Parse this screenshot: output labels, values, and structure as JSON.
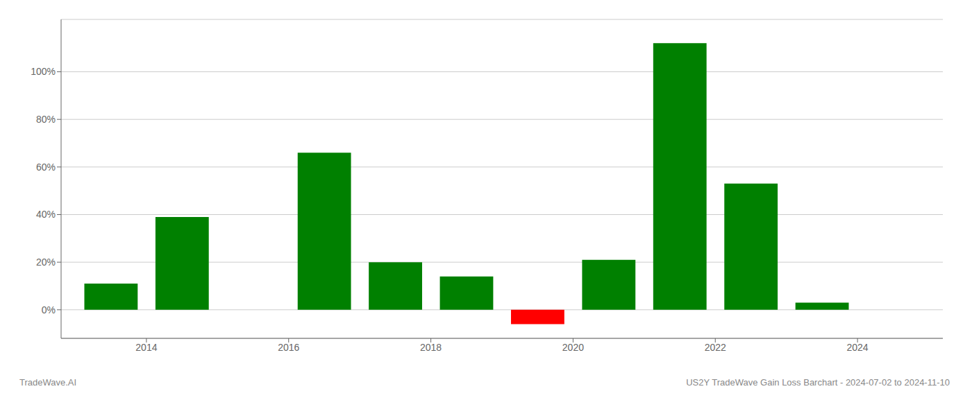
{
  "chart_data": {
    "type": "bar",
    "x": [
      2013.5,
      2014.5,
      2015.5,
      2016.5,
      2017.5,
      2018.5,
      2019.5,
      2020.5,
      2021.5,
      2022.5,
      2023.5
    ],
    "values": [
      11,
      39,
      0,
      66,
      20,
      14,
      -6,
      21,
      112,
      53,
      3
    ],
    "colors": [
      "#008000",
      "#008000",
      "#008000",
      "#008000",
      "#008000",
      "#008000",
      "#ff0000",
      "#008000",
      "#008000",
      "#008000",
      "#008000"
    ],
    "xlim": [
      2012.8,
      2025.2
    ],
    "xticks": [
      2014,
      2016,
      2018,
      2020,
      2022,
      2024
    ],
    "ylim": [
      -12,
      122
    ],
    "yticks": [
      {
        "value": 0,
        "label": "0%"
      },
      {
        "value": 20,
        "label": "20%"
      },
      {
        "value": 40,
        "label": "40%"
      },
      {
        "value": 60,
        "label": "60%"
      },
      {
        "value": 80,
        "label": "80%"
      },
      {
        "value": 100,
        "label": "100%"
      }
    ],
    "grid": true,
    "annotations": [
      "TradeWave.AI",
      "US2Y TradeWave Gain Loss Barchart - 2024-07-02 to 2024-11-10"
    ]
  }
}
